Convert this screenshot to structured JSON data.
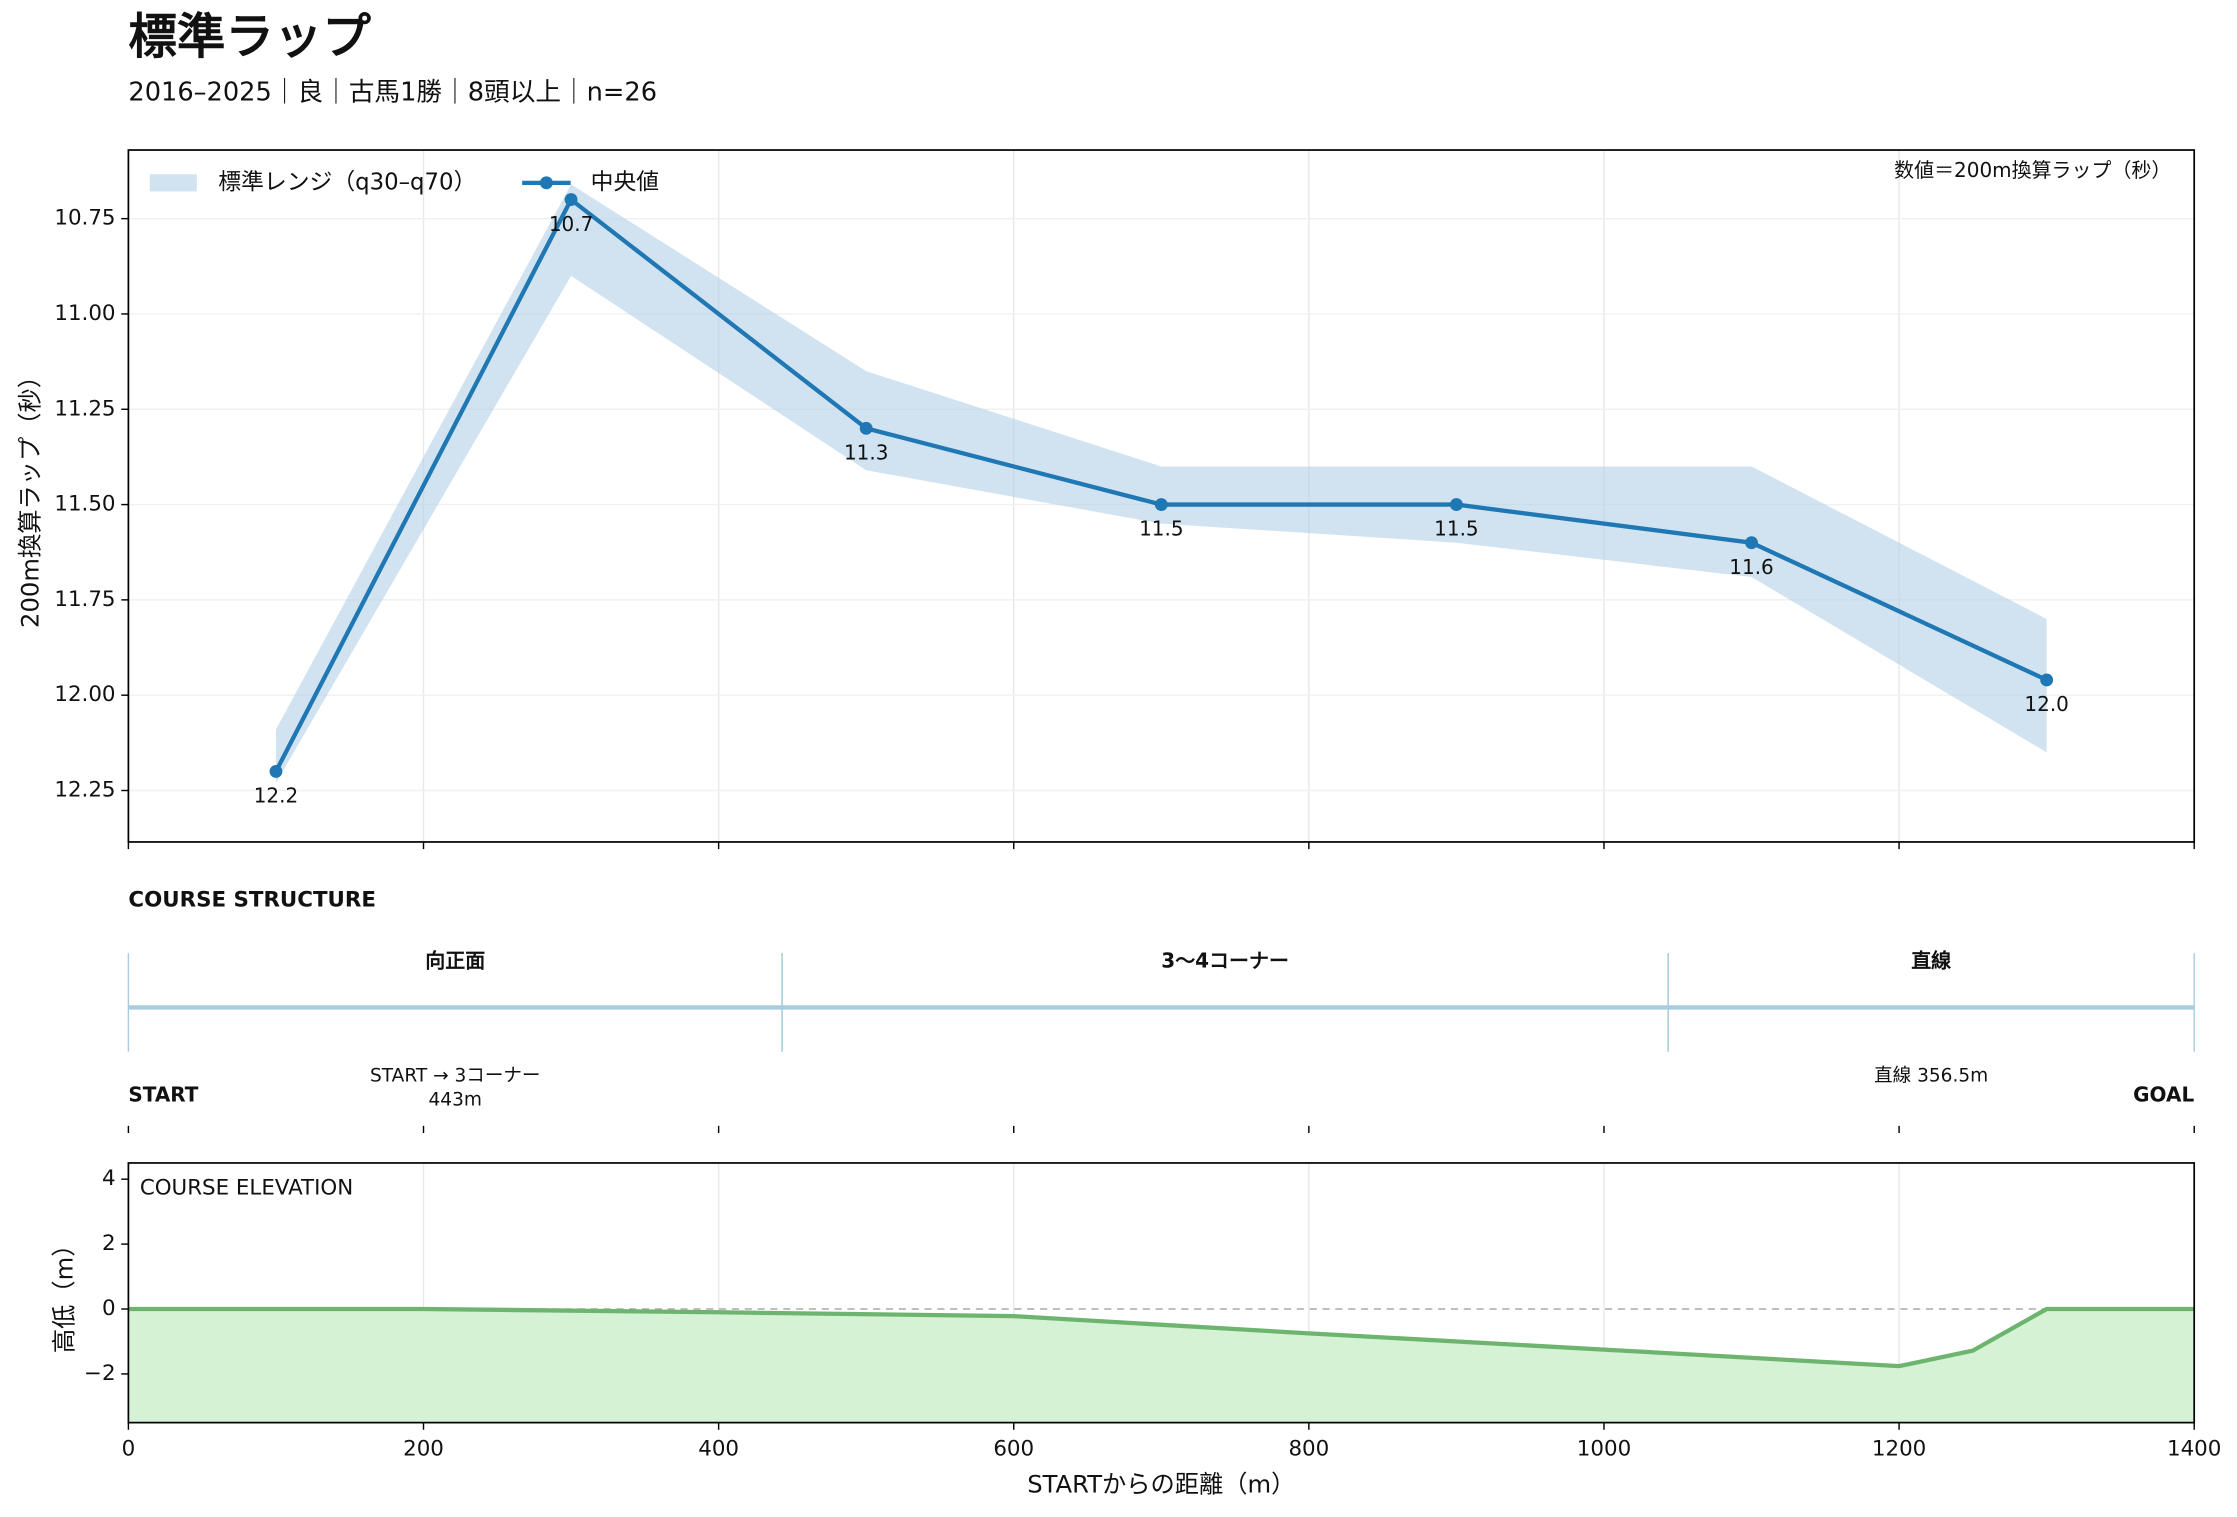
{
  "title": "標準ラップ",
  "subtitle": "2016–2025｜良｜古馬1勝｜8頭以上｜n=26",
  "chart_data": [
    {
      "type": "line",
      "y_label": "200m換算ラップ（秒）",
      "note": "数値＝200m換算ラップ（秒）",
      "x": [
        100,
        300,
        500,
        700,
        900,
        1100,
        1300
      ],
      "series": [
        {
          "name": "中央値",
          "color": "#1f77b4",
          "values": [
            12.2,
            10.7,
            11.3,
            11.5,
            11.5,
            11.6,
            11.96
          ],
          "value_labels": [
            "12.2",
            "10.7",
            "11.3",
            "11.5",
            "11.5",
            "11.6",
            "12.0"
          ]
        }
      ],
      "band": {
        "name": "標準レンジ（q30–q70）",
        "color": "#b3d0e6",
        "lower": [
          12.09,
          10.66,
          11.15,
          11.4,
          11.4,
          11.4,
          11.8
        ],
        "upper": [
          12.23,
          10.9,
          11.41,
          11.55,
          11.6,
          11.69,
          12.15
        ]
      },
      "xlim": [
        0,
        1400
      ],
      "xticks": [
        0,
        200,
        400,
        600,
        800,
        1000,
        1200,
        1400
      ],
      "ylim": [
        10.57,
        12.385
      ],
      "y_inverted": true,
      "yticks": [
        10.75,
        {
          "value": 11,
          "label": "11.00"
        },
        11.25,
        {
          "value": 11.5,
          "label": "11.50"
        },
        11.75,
        {
          "value": 12,
          "label": "12.00"
        },
        12.25
      ],
      "grid": true
    },
    {
      "type": "area",
      "title": "COURSE ELEVATION",
      "y_label": "高低（m）",
      "x_label": "STARTからの距離（m）",
      "x": [
        0,
        200,
        400,
        600,
        800,
        1000,
        1200,
        1250,
        1300,
        1400
      ],
      "series": [
        {
          "color": "#6db56f",
          "fill": "#d5f2d5",
          "values": [
            0,
            0,
            -0.1,
            -0.22,
            -0.75,
            -1.25,
            -1.76,
            -1.28,
            0,
            0
          ]
        }
      ],
      "xlim": [
        0,
        1400
      ],
      "xticks": [
        0,
        200,
        400,
        600,
        800,
        1000,
        1200,
        1400
      ],
      "ylim": [
        -3.5,
        4.5
      ],
      "yticks": [
        {
          "value": -2,
          "label": "−2"
        },
        0,
        2,
        4
      ],
      "grid": true
    }
  ],
  "course_structure": {
    "title": "COURSE STRUCTURE",
    "start_label": "START",
    "goal_label": "GOAL",
    "color": "#a9cddd",
    "segments": [
      {
        "label": "向正面",
        "start": 0,
        "end": 443,
        "note": [
          "START → 3コーナー",
          "443m"
        ]
      },
      {
        "label": "3〜4コーナー",
        "start": 443,
        "end": 1043.5
      },
      {
        "label": "直線",
        "start": 1043.5,
        "end": 1400,
        "note": [
          "直線 356.5m"
        ]
      }
    ]
  }
}
